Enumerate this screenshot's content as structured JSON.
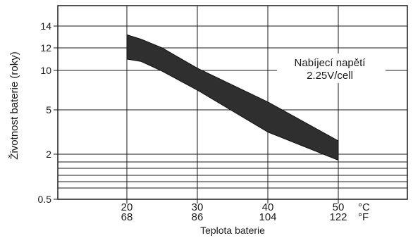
{
  "chart_data": {
    "type": "area",
    "title": "",
    "xlabel": "Teplota baterie",
    "ylabel": "Životnost baterie (roky)",
    "x_ticks": [
      {
        "c": "20",
        "f": "68",
        "value": 20
      },
      {
        "c": "30",
        "f": "86",
        "value": 30
      },
      {
        "c": "40",
        "f": "104",
        "value": 40
      },
      {
        "c": "50",
        "f": "122",
        "value": 50
      }
    ],
    "x_unit_c": "°C",
    "x_unit_f": "°F",
    "y_ticks": [
      {
        "label": "14",
        "value": 14
      },
      {
        "label": "12",
        "value": 12
      },
      {
        "label": "10",
        "value": 10
      },
      {
        "label": "5",
        "value": 5
      },
      {
        "label": "2",
        "value": 2
      },
      {
        "label": "0.5",
        "value": 0.5
      }
    ],
    "y_scale": "nonlinear",
    "y_extra_gridlines": [
      1.75,
      1.5,
      1.25,
      1.0,
      0.75
    ],
    "xlim": [
      10,
      60
    ],
    "grid": true,
    "annotation": {
      "line1": "Nabíjecí napětí",
      "line2": "2.25V/cell"
    },
    "series": [
      {
        "upper": {
          "x": [
            20,
            22,
            25,
            30,
            40,
            50
          ],
          "y": [
            13.2,
            12.8,
            12.0,
            10.2,
            6.0,
            2.9
          ]
        },
        "lower": {
          "x": [
            20,
            22,
            25,
            30,
            40,
            50
          ],
          "y": [
            11.0,
            10.8,
            9.9,
            7.5,
            3.5,
            1.8
          ]
        }
      }
    ],
    "fill_color": "#2f2f2f",
    "grid_color": "#1a1a1a"
  }
}
